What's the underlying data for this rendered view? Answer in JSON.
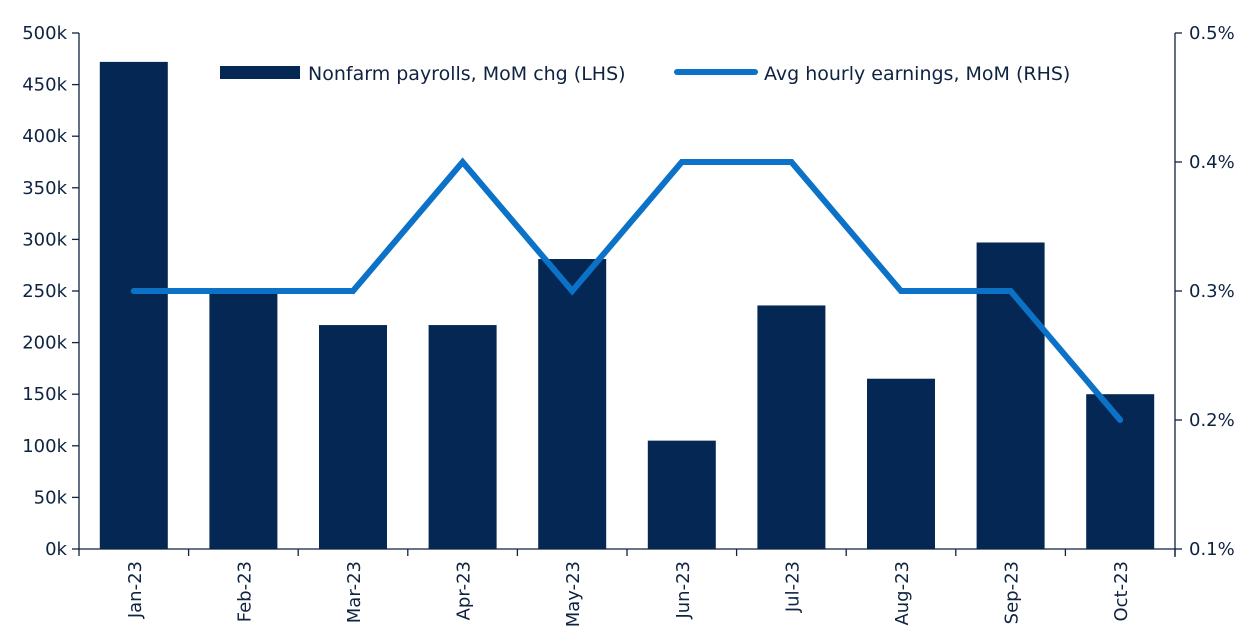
{
  "colors": {
    "bar": "#042853",
    "line": "#0b72c7",
    "axis": "#0f2341",
    "background": "#ffffff"
  },
  "legend": {
    "bar_label": "Nonfarm payrolls, MoM chg (LHS)",
    "line_label": "Avg hourly earnings, MoM (RHS)"
  },
  "left_axis": {
    "ticks": [
      "0k",
      "50k",
      "100k",
      "150k",
      "200k",
      "250k",
      "300k",
      "350k",
      "400k",
      "450k",
      "500k"
    ]
  },
  "right_axis": {
    "ticks": [
      "0.1%",
      "0.2%",
      "0.3%",
      "0.4%",
      "0.5%"
    ]
  },
  "x_axis": {
    "ticks": [
      "Jan-23",
      "Feb-23",
      "Mar-23",
      "Apr-23",
      "May-23",
      "Jun-23",
      "Jul-23",
      "Aug-23",
      "Sep-23",
      "Oct-23"
    ]
  },
  "chart_data": {
    "type": "bar",
    "title": "",
    "categories": [
      "Jan-23",
      "Feb-23",
      "Mar-23",
      "Apr-23",
      "May-23",
      "Jun-23",
      "Jul-23",
      "Aug-23",
      "Sep-23",
      "Oct-23"
    ],
    "series": [
      {
        "name": "Nonfarm payrolls, MoM chg (LHS)",
        "type": "bar",
        "axis": "left",
        "values": [
          472000,
          248000,
          217000,
          217000,
          281000,
          105000,
          236000,
          165000,
          297000,
          150000
        ]
      },
      {
        "name": "Avg hourly earnings, MoM (RHS)",
        "type": "line",
        "axis": "right",
        "values": [
          0.3,
          0.3,
          0.3,
          0.4,
          0.3,
          0.4,
          0.4,
          0.3,
          0.3,
          0.2
        ]
      }
    ],
    "xlabel": "",
    "ylabel": "",
    "ylim": [
      0,
      500000
    ],
    "y2lim": [
      0.1,
      0.5
    ],
    "grid": false,
    "legend_position": "top"
  }
}
